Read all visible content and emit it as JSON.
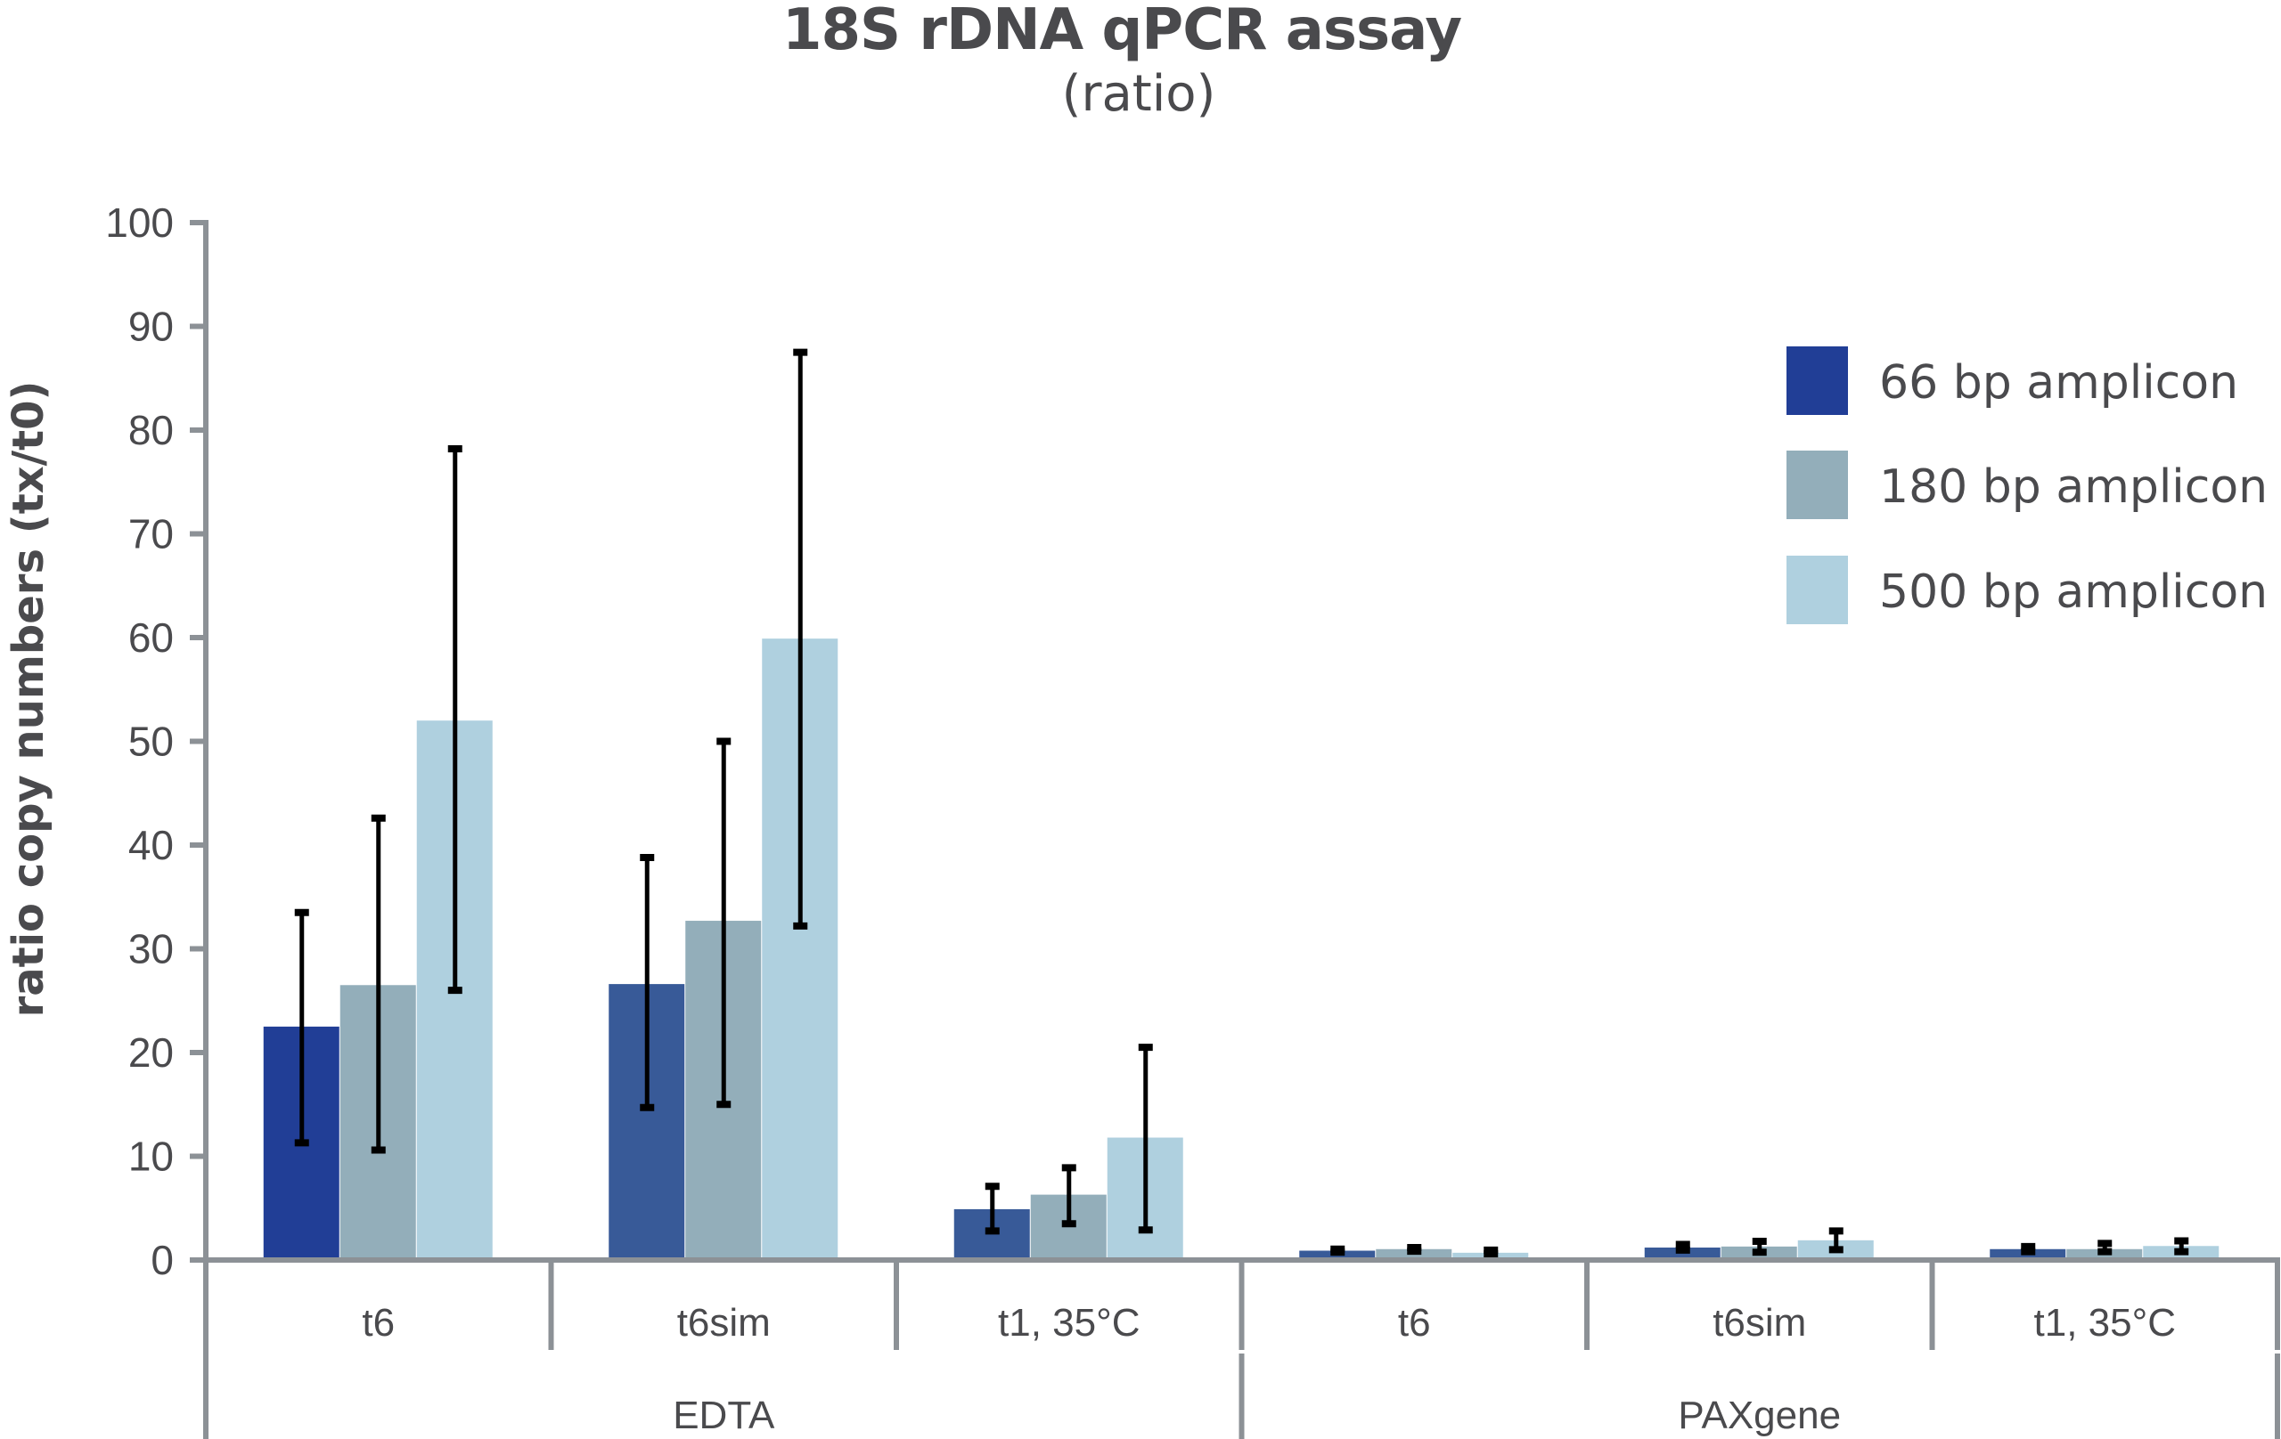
{
  "chart_data": {
    "type": "bar",
    "title": "18S rDNA qPCR assay",
    "subtitle": "(ratio)",
    "xlabel": "",
    "ylabel": "ratio copy numbers (tx/t0)",
    "ylim": [
      0,
      100
    ],
    "yticks": [
      0,
      10,
      20,
      30,
      40,
      50,
      60,
      70,
      80,
      90,
      100
    ],
    "grid": false,
    "legend_position": "top-right",
    "groups": [
      {
        "name": "EDTA",
        "categories": [
          "t6",
          "t6sim",
          "t1, 35°C"
        ]
      },
      {
        "name": "PAXgene",
        "categories": [
          "t6",
          "t6sim",
          "t1, 35°C"
        ]
      }
    ],
    "categories": [
      "EDTA t6",
      "EDTA t6sim",
      "EDTA t1, 35°C",
      "PAXgene t6",
      "PAXgene t6sim",
      "PAXgene t1, 35°C"
    ],
    "category_labels": [
      "t6",
      "t6sim",
      "t1, 35°C",
      "t6",
      "t6sim",
      "t1, 35°C"
    ],
    "series": [
      {
        "name": "66 bp amplicon",
        "color": "#213e96",
        "alt_color": "#385a98",
        "values": [
          22.5,
          26.6,
          4.9,
          0.9,
          1.2,
          1.05
        ],
        "error_low": [
          11.3,
          14.7,
          2.8,
          0.75,
          0.95,
          0.8
        ],
        "error_high": [
          33.5,
          38.8,
          7.1,
          1.05,
          1.5,
          1.3
        ]
      },
      {
        "name": "180 bp amplicon",
        "color": "#93aeba",
        "values": [
          26.5,
          32.7,
          6.3,
          1.05,
          1.3,
          1.05
        ],
        "error_low": [
          10.6,
          15.0,
          3.5,
          0.85,
          0.75,
          0.8
        ],
        "error_high": [
          42.6,
          50.0,
          8.9,
          1.2,
          1.8,
          1.6
        ]
      },
      {
        "name": "500 bp amplicon",
        "color": "#afd0df",
        "values": [
          52.0,
          59.9,
          11.8,
          0.7,
          1.9,
          1.35
        ],
        "error_low": [
          26.0,
          32.2,
          2.9,
          0.6,
          1.0,
          0.8
        ],
        "error_high": [
          78.2,
          87.5,
          20.5,
          0.95,
          2.8,
          1.85
        ]
      }
    ]
  }
}
